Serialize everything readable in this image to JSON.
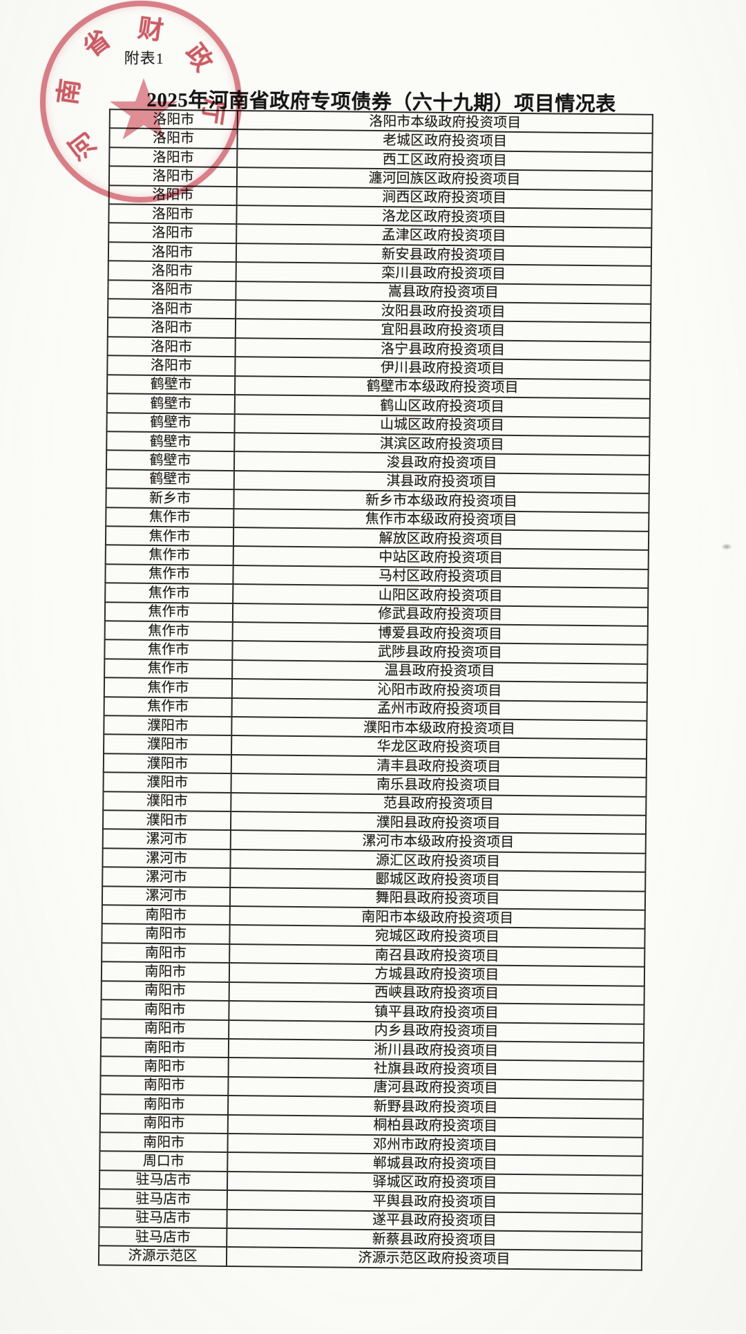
{
  "document": {
    "appendix_label": "附表1",
    "title": "2025年河南省政府专项债券（六十九期）项目情况表"
  },
  "seal": {
    "agency": "河南省财政厅",
    "characters": [
      "河",
      "南",
      "省",
      "财",
      "政",
      "厅"
    ],
    "color": "#c63846"
  },
  "table": {
    "columns": [
      "city",
      "project"
    ],
    "rows": [
      {
        "city": "洛阳市",
        "project": "洛阳市本级政府投资项目"
      },
      {
        "city": "洛阳市",
        "project": "老城区政府投资项目"
      },
      {
        "city": "洛阳市",
        "project": "西工区政府投资项目"
      },
      {
        "city": "洛阳市",
        "project": "瀍河回族区政府投资项目"
      },
      {
        "city": "洛阳市",
        "project": "涧西区政府投资项目"
      },
      {
        "city": "洛阳市",
        "project": "洛龙区政府投资项目"
      },
      {
        "city": "洛阳市",
        "project": "孟津区政府投资项目"
      },
      {
        "city": "洛阳市",
        "project": "新安县政府投资项目"
      },
      {
        "city": "洛阳市",
        "project": "栾川县政府投资项目"
      },
      {
        "city": "洛阳市",
        "project": "嵩县政府投资项目"
      },
      {
        "city": "洛阳市",
        "project": "汝阳县政府投资项目"
      },
      {
        "city": "洛阳市",
        "project": "宜阳县政府投资项目"
      },
      {
        "city": "洛阳市",
        "project": "洛宁县政府投资项目"
      },
      {
        "city": "洛阳市",
        "project": "伊川县政府投资项目"
      },
      {
        "city": "鹤壁市",
        "project": "鹤壁市本级政府投资项目"
      },
      {
        "city": "鹤壁市",
        "project": "鹤山区政府投资项目"
      },
      {
        "city": "鹤壁市",
        "project": "山城区政府投资项目"
      },
      {
        "city": "鹤壁市",
        "project": "淇滨区政府投资项目"
      },
      {
        "city": "鹤壁市",
        "project": "浚县政府投资项目"
      },
      {
        "city": "鹤壁市",
        "project": "淇县政府投资项目"
      },
      {
        "city": "新乡市",
        "project": "新乡市本级政府投资项目"
      },
      {
        "city": "焦作市",
        "project": "焦作市本级政府投资项目"
      },
      {
        "city": "焦作市",
        "project": "解放区政府投资项目"
      },
      {
        "city": "焦作市",
        "project": "中站区政府投资项目"
      },
      {
        "city": "焦作市",
        "project": "马村区政府投资项目"
      },
      {
        "city": "焦作市",
        "project": "山阳区政府投资项目"
      },
      {
        "city": "焦作市",
        "project": "修武县政府投资项目"
      },
      {
        "city": "焦作市",
        "project": "博爱县政府投资项目"
      },
      {
        "city": "焦作市",
        "project": "武陟县政府投资项目"
      },
      {
        "city": "焦作市",
        "project": "温县政府投资项目"
      },
      {
        "city": "焦作市",
        "project": "沁阳市政府投资项目"
      },
      {
        "city": "焦作市",
        "project": "孟州市政府投资项目"
      },
      {
        "city": "濮阳市",
        "project": "濮阳市本级政府投资项目"
      },
      {
        "city": "濮阳市",
        "project": "华龙区政府投资项目"
      },
      {
        "city": "濮阳市",
        "project": "清丰县政府投资项目"
      },
      {
        "city": "濮阳市",
        "project": "南乐县政府投资项目"
      },
      {
        "city": "濮阳市",
        "project": "范县政府投资项目"
      },
      {
        "city": "濮阳市",
        "project": "濮阳县政府投资项目"
      },
      {
        "city": "漯河市",
        "project": "漯河市本级政府投资项目"
      },
      {
        "city": "漯河市",
        "project": "源汇区政府投资项目"
      },
      {
        "city": "漯河市",
        "project": "郾城区政府投资项目"
      },
      {
        "city": "漯河市",
        "project": "舞阳县政府投资项目"
      },
      {
        "city": "南阳市",
        "project": "南阳市本级政府投资项目"
      },
      {
        "city": "南阳市",
        "project": "宛城区政府投资项目"
      },
      {
        "city": "南阳市",
        "project": "南召县政府投资项目"
      },
      {
        "city": "南阳市",
        "project": "方城县政府投资项目"
      },
      {
        "city": "南阳市",
        "project": "西峡县政府投资项目"
      },
      {
        "city": "南阳市",
        "project": "镇平县政府投资项目"
      },
      {
        "city": "南阳市",
        "project": "内乡县政府投资项目"
      },
      {
        "city": "南阳市",
        "project": "淅川县政府投资项目"
      },
      {
        "city": "南阳市",
        "project": "社旗县政府投资项目"
      },
      {
        "city": "南阳市",
        "project": "唐河县政府投资项目"
      },
      {
        "city": "南阳市",
        "project": "新野县政府投资项目"
      },
      {
        "city": "南阳市",
        "project": "桐柏县政府投资项目"
      },
      {
        "city": "南阳市",
        "project": "邓州市政府投资项目"
      },
      {
        "city": "周口市",
        "project": "郸城县政府投资项目"
      },
      {
        "city": "驻马店市",
        "project": "驿城区政府投资项目"
      },
      {
        "city": "驻马店市",
        "project": "平舆县政府投资项目"
      },
      {
        "city": "驻马店市",
        "project": "遂平县政府投资项目"
      },
      {
        "city": "驻马店市",
        "project": "新蔡县政府投资项目"
      },
      {
        "city": "济源示范区",
        "project": "济源示范区政府投资项目"
      }
    ]
  }
}
